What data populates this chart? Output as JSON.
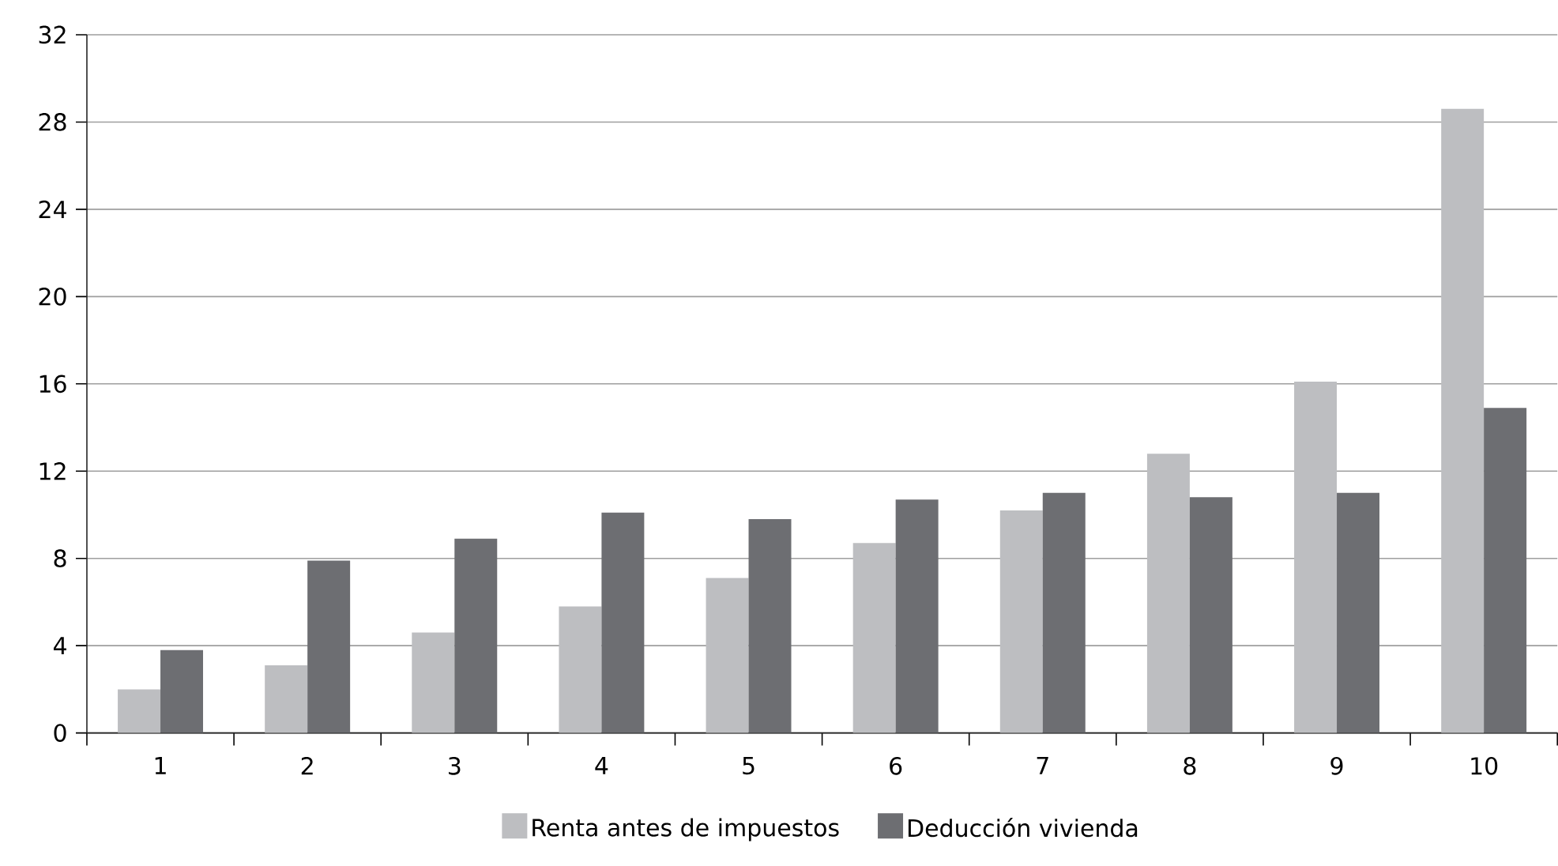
{
  "chart_data": {
    "type": "bar",
    "categories": [
      "1",
      "2",
      "3",
      "4",
      "5",
      "6",
      "7",
      "8",
      "9",
      "10"
    ],
    "series": [
      {
        "name": "Renta antes de impuestos",
        "color": "#bdbec1",
        "values": [
          2.0,
          3.1,
          4.6,
          5.8,
          7.1,
          8.7,
          10.2,
          12.8,
          16.1,
          28.6
        ]
      },
      {
        "name": "Deducción vivienda",
        "color": "#6d6e72",
        "values": [
          3.8,
          7.9,
          8.9,
          10.1,
          9.8,
          10.7,
          11.0,
          10.8,
          11.0,
          14.9
        ]
      }
    ],
    "ylim": [
      0,
      32
    ],
    "yticks": [
      0,
      4,
      8,
      12,
      16,
      20,
      24,
      28,
      32
    ],
    "grid": "y",
    "legend": "bottom"
  }
}
